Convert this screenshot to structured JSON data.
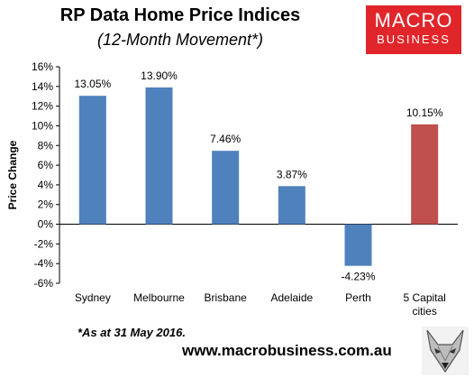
{
  "chart_data": {
    "type": "bar",
    "title": "RP Data Home Price Indices",
    "subtitle": "(12-Month Movement*)",
    "ylabel": "Price Change",
    "xlabel": "",
    "categories": [
      "Sydney",
      "Melbourne",
      "Brisbane",
      "Adelaide",
      "Perth",
      "5 Capital cities"
    ],
    "values": [
      13.05,
      13.9,
      7.46,
      3.87,
      -4.23,
      10.15
    ],
    "data_labels": [
      "13.05%",
      "13.90%",
      "7.46%",
      "3.87%",
      "-4.23%",
      "10.15%"
    ],
    "ylim": [
      -6,
      16
    ],
    "yticks": [
      16,
      14,
      12,
      10,
      8,
      6,
      4,
      2,
      0,
      -2,
      -4,
      -6
    ],
    "ytick_labels": [
      "16%",
      "14%",
      "12%",
      "10%",
      "8%",
      "6%",
      "4%",
      "2%",
      "0%",
      "-2%",
      "-4%",
      "-6%"
    ],
    "grid": false,
    "colors": {
      "default": "#4f81bd",
      "highlight": "#c0504d",
      "highlight_category": "5 Capital cities"
    }
  },
  "footnote": "*As at 31 May 2016.",
  "website": "www.macrobusiness.com.au",
  "logo": {
    "line1": "MACRO",
    "line2": "BUSINESS",
    "color": "#e0262b"
  },
  "fox_logo": "fox-head-icon"
}
